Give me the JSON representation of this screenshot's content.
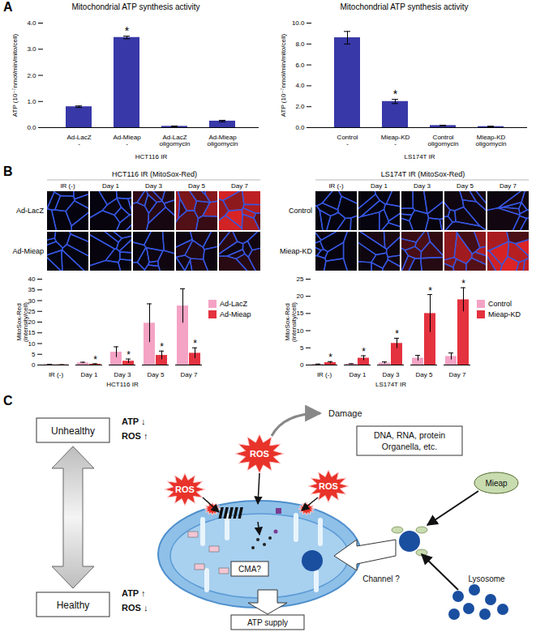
{
  "panels": [
    "A",
    "B",
    "C"
  ],
  "chart_data": [
    {
      "type": "bar",
      "title": "Mitochondrial ATP synthesis activity",
      "ylabel": "ATP (10⁻⁷nmol/min/mito/cell)",
      "xlabel": "HCT116 IR",
      "categories": [
        "Ad-LacZ\n-",
        "Ad-Mieap\n-",
        "Ad-LacZ\noligomycin",
        "Ad-Mieap\noligomycin"
      ],
      "values": [
        0.8,
        3.45,
        0.05,
        0.25
      ],
      "errors": [
        0.03,
        0.05,
        0.01,
        0.03
      ],
      "annotations": [
        null,
        "*",
        null,
        null
      ],
      "color": "#3838a8",
      "ylim": [
        0,
        4
      ],
      "yticks": [
        {
          "value": 0,
          "label": "0.0"
        },
        {
          "value": 1,
          "label": "1.0"
        },
        {
          "value": 2,
          "label": "2.0"
        },
        {
          "value": 3,
          "label": "3.0"
        },
        {
          "value": 4,
          "label": "4.0"
        }
      ],
      "grid": false
    },
    {
      "type": "bar",
      "title": "Mitochondrial ATP synthesis activity",
      "ylabel": "ATP (10⁻⁷nmol/min/mito/cell)",
      "xlabel": "LS174T IR",
      "categories": [
        "Control\n-",
        "Mieap-KD\n-",
        "Control\noligomycin",
        "Mieap-KD\noligomycin"
      ],
      "values": [
        8.6,
        2.5,
        0.2,
        0.1
      ],
      "errors": [
        0.6,
        0.2,
        0.03,
        0.03
      ],
      "annotations": [
        null,
        "*",
        null,
        null
      ],
      "color": "#3838a8",
      "ylim": [
        0,
        10
      ],
      "yticks": [
        {
          "value": 0,
          "label": "0.0"
        },
        {
          "value": 2,
          "label": "2.0"
        },
        {
          "value": 4,
          "label": "4.0"
        },
        {
          "value": 6,
          "label": "6.0"
        },
        {
          "value": 8,
          "label": "8.0"
        },
        {
          "value": 10,
          "label": "10.0"
        }
      ],
      "grid": false
    },
    {
      "type": "bar",
      "ylabel": "MitoSox-Red\n(intensity/cell)",
      "xlabel": "HCT116 IR",
      "categories": [
        "IR (-)",
        "Day 1",
        "Day 3",
        "Day 5",
        "Day 7"
      ],
      "series": [
        {
          "name": "Ad-LacZ",
          "color": "#f4a3c4",
          "values": [
            0.2,
            1.0,
            6.0,
            19.5,
            27.5
          ],
          "errors": [
            0.1,
            0.3,
            2.5,
            9.0,
            8.0
          ],
          "annotations": [
            null,
            null,
            null,
            null,
            null
          ]
        },
        {
          "name": "Ad-Mieap",
          "color": "#e4323f",
          "values": [
            0.1,
            0.4,
            1.8,
            4.5,
            5.5
          ],
          "errors": [
            0.05,
            0.2,
            1.0,
            2.0,
            2.5
          ],
          "annotations": [
            null,
            "*",
            "*",
            "*",
            "*"
          ]
        }
      ],
      "ylim": [
        0,
        40
      ],
      "yticks": [
        0,
        5,
        10,
        15,
        20,
        25,
        30,
        35,
        40
      ],
      "legend": "right",
      "grid": false
    },
    {
      "type": "bar",
      "ylabel": "MitoSox-Red\n(intensity/cell)",
      "xlabel": "LS174T IR",
      "categories": [
        "IR (-)",
        "Day 1",
        "Day 3",
        "Day 5",
        "Day 7"
      ],
      "series": [
        {
          "name": "Control",
          "color": "#f4a3c4",
          "values": [
            0.2,
            0.3,
            0.6,
            2.0,
            2.5
          ],
          "errors": [
            0.1,
            0.1,
            0.3,
            0.8,
            1.0
          ],
          "annotations": [
            null,
            null,
            null,
            null,
            null
          ]
        },
        {
          "name": "Mieap-KD",
          "color": "#e4323f",
          "values": [
            0.7,
            2.0,
            6.3,
            15.0,
            19.0
          ],
          "errors": [
            0.3,
            0.7,
            1.5,
            5.5,
            3.5
          ],
          "annotations": [
            "*",
            "*",
            "*",
            "*",
            "*"
          ]
        }
      ],
      "ylim": [
        0,
        25
      ],
      "yticks": [
        0,
        5,
        10,
        15,
        20,
        25
      ],
      "legend": "right",
      "grid": false
    }
  ],
  "micrographs": [
    {
      "title": "HCT116 IR (MitoSox-Red)",
      "columns": [
        "IR (-)",
        "Day 1",
        "Day 3",
        "Day 5",
        "Day 7"
      ],
      "rows": [
        "Ad-LacZ",
        "Ad-Mieap"
      ]
    },
    {
      "title": "LS174T IR (MitoSox-Red)",
      "columns": [
        "IR (-)",
        "Day 1",
        "Day 3",
        "Day 5",
        "Day 7"
      ],
      "rows": [
        "Control",
        "Mieap-KD"
      ]
    }
  ],
  "diagram": {
    "health_top": "Unhealthy",
    "health_bottom": "Healthy",
    "top_indicators": [
      "ATP ↓",
      "ROS ↑"
    ],
    "bottom_indicators": [
      "ATP ↑",
      "ROS ↓"
    ],
    "ros_label": "ROS",
    "damage": "Damage",
    "damage_targets": [
      "DNA, RNA, protein",
      "Organella, etc."
    ],
    "mieap": "Mieap",
    "lysosome": "Lysosome",
    "cma": "CMA?",
    "channel": "Channel ?",
    "atp_supply": "ATP supply"
  }
}
